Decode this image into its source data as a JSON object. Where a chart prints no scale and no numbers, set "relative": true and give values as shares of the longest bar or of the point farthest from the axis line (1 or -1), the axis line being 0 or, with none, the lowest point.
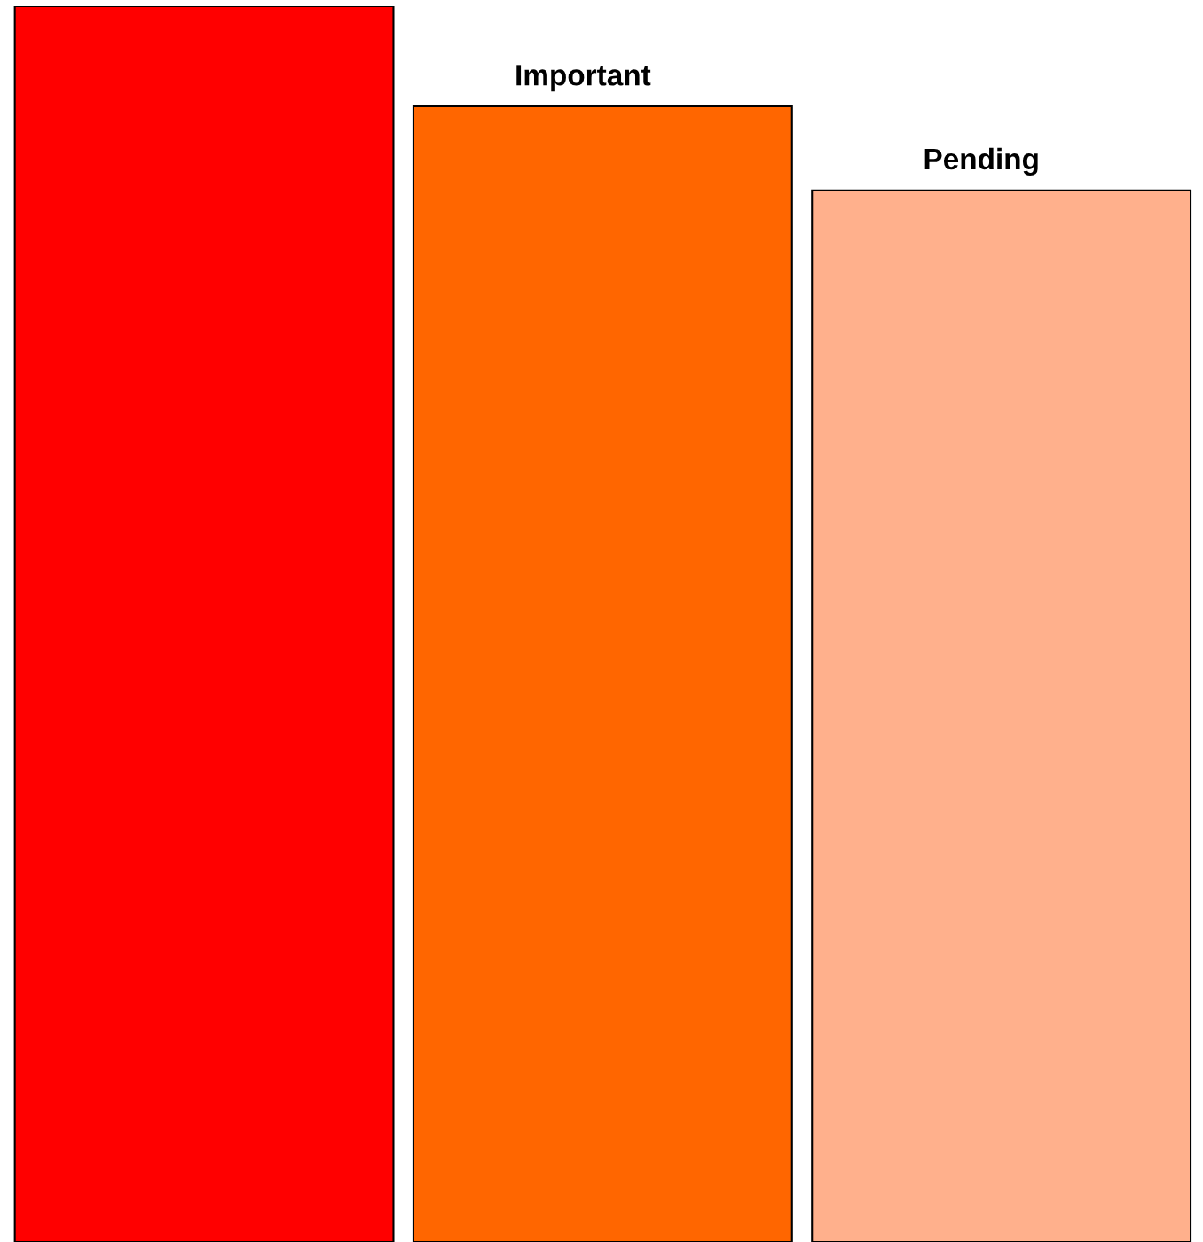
{
  "chart_data": {
    "type": "bar",
    "relative": true,
    "categories": [
      null,
      "Important",
      "Pending"
    ],
    "values": [
      1,
      0.919,
      0.851
    ],
    "colors": [
      "#ff0000",
      "#ff6600",
      "#ffb08c"
    ]
  }
}
